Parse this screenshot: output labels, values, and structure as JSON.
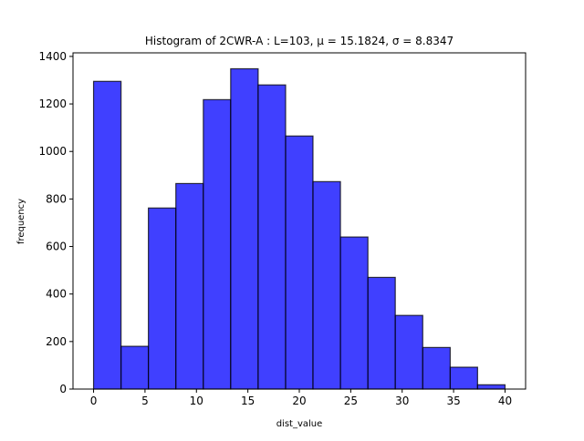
{
  "chart_data": {
    "type": "bar",
    "title": "Histogram of 2CWR-A : L=103, μ = 15.1824, σ = 8.8347",
    "xlabel": "dist_value",
    "ylabel": "frequency",
    "bin_edges": [
      0,
      2.67,
      5.33,
      8.0,
      10.67,
      13.33,
      16.0,
      18.67,
      21.33,
      24.0,
      26.67,
      29.33,
      32.0,
      34.67,
      37.33,
      40.0
    ],
    "values": [
      1295,
      180,
      762,
      865,
      1218,
      1348,
      1280,
      1065,
      873,
      640,
      470,
      310,
      175,
      92,
      18
    ],
    "xlim": [
      -2,
      42
    ],
    "ylim": [
      0,
      1415
    ],
    "x_ticks": [
      0,
      5,
      10,
      15,
      20,
      25,
      30,
      35,
      40
    ],
    "y_ticks": [
      0,
      200,
      400,
      600,
      800,
      1000,
      1200,
      1400
    ],
    "bar_color": "#0000ff",
    "bar_opacity": 0.75,
    "edge_color": "#000000",
    "grid": false
  }
}
